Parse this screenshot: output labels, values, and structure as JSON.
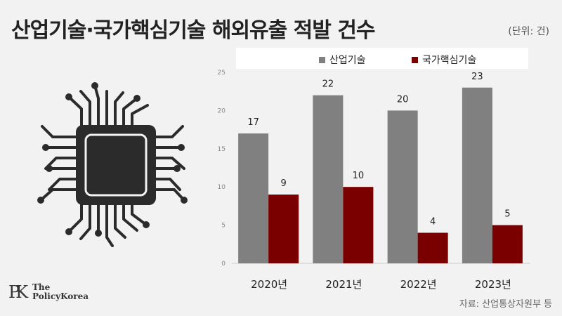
{
  "header": {
    "title": "산업기술·국가핵심기술 해외유출 적발 건수",
    "unit": "(단위: 건)"
  },
  "legend": {
    "item1": "산업기술",
    "item2": "국가핵심기술"
  },
  "footer": {
    "source": "자료: 산업통상자원부 등",
    "logo_mark": "PK",
    "logo_line1": "The",
    "logo_line2": "PolicyKorea"
  },
  "colors": {
    "series1": "#808080",
    "series2": "#7a0000",
    "chip": "#2b2b2b"
  },
  "icons": {
    "illustration": "microchip-icon"
  },
  "chart_data": {
    "type": "bar",
    "categories": [
      "2020년",
      "2021년",
      "2022년",
      "2023년"
    ],
    "series": [
      {
        "name": "산업기술",
        "values": [
          17,
          22,
          20,
          23
        ],
        "color": "#808080"
      },
      {
        "name": "국가핵심기술",
        "values": [
          9,
          10,
          4,
          5
        ],
        "color": "#7a0000"
      }
    ],
    "ylim": [
      0,
      25
    ],
    "yticks": [
      0,
      5,
      10,
      15,
      20,
      25
    ],
    "grid": false,
    "legend_position": "top"
  }
}
